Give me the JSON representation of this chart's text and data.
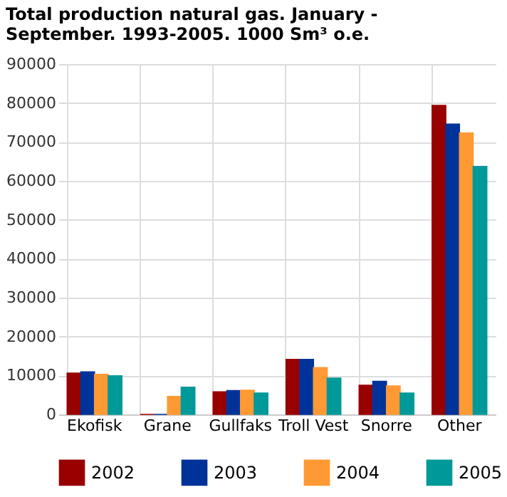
{
  "chart_data": {
    "type": "bar",
    "title": "Total production natural gas. January - September. 1993-2005. 1000 Sm³ o.e.",
    "categories": [
      "Ekofisk",
      "Grane",
      "Gullfaks",
      "Troll Vest",
      "Snorre",
      "Other"
    ],
    "series": [
      {
        "name": "2002",
        "color": "#990000",
        "values": [
          10600,
          0,
          5800,
          14100,
          7500,
          79400
        ]
      },
      {
        "name": "2003",
        "color": "#003399",
        "values": [
          10900,
          0,
          6100,
          14100,
          8500,
          74600
        ]
      },
      {
        "name": "2004",
        "color": "#ff9933",
        "values": [
          10300,
          4600,
          6200,
          12000,
          7300,
          72300
        ]
      },
      {
        "name": "2005",
        "color": "#009999",
        "values": [
          9900,
          7000,
          5500,
          9300,
          5500,
          63700
        ]
      }
    ],
    "ylim": [
      0,
      90000
    ],
    "yticks": [
      0,
      10000,
      20000,
      30000,
      40000,
      50000,
      60000,
      70000,
      80000,
      90000
    ],
    "grid": true,
    "legend": "bottom"
  }
}
